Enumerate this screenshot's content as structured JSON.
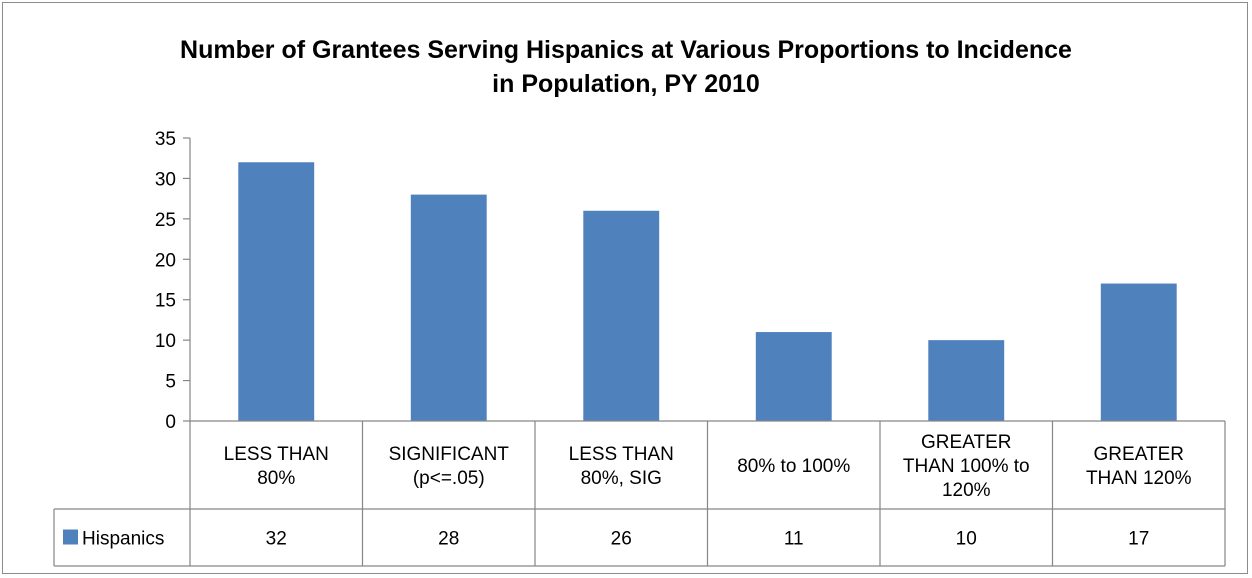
{
  "chart_data": {
    "type": "bar",
    "title_lines": [
      "Number of Grantees Serving Hispanics at Various Proportions to Incidence",
      "in Population, PY 2010"
    ],
    "categories": [
      [
        "LESS THAN",
        "80%"
      ],
      [
        "SIGNIFICANT",
        "(p<=.05)"
      ],
      [
        "LESS THAN",
        "80%, SIG"
      ],
      [
        "80% to 100%"
      ],
      [
        "GREATER",
        "THAN 100% to",
        "120%"
      ],
      [
        "GREATER",
        "THAN 120%"
      ]
    ],
    "series": [
      {
        "name": "Hispanics",
        "values": [
          32,
          28,
          26,
          11,
          10,
          17
        ],
        "value_labels": [
          "32",
          "28",
          "26",
          "11",
          "10",
          "17"
        ]
      }
    ],
    "ylim": [
      0,
      35
    ],
    "yticks": [
      "0",
      "5",
      "10",
      "15",
      "20",
      "25",
      "30",
      "35"
    ],
    "grid": false,
    "legend": "data-table",
    "colors": {
      "bar": "#4f81bd",
      "axis": "#868686",
      "text": "#000000"
    }
  }
}
